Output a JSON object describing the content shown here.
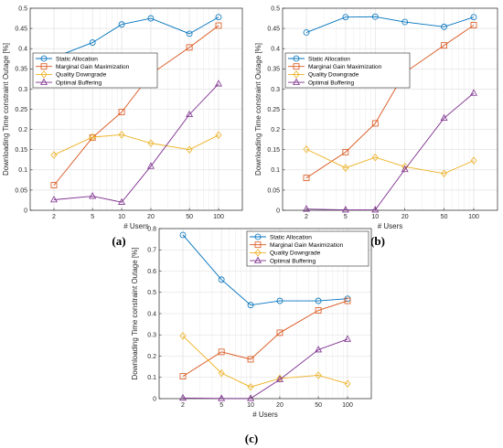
{
  "chart_data": [
    {
      "panel_label": "(a)",
      "type": "line",
      "x_categories": [
        "2",
        "5",
        "10",
        "20",
        "50",
        "100"
      ],
      "x_values": [
        2,
        5,
        10,
        20,
        50,
        100
      ],
      "xlabel": "# Users",
      "ylabel": "Downloading Time constraint Outage [%]",
      "ylim": [
        0,
        0.5
      ],
      "yticks": [
        "0",
        "0.05",
        "0.1",
        "0.15",
        "0.2",
        "0.25",
        "0.3",
        "0.35",
        "0.4",
        "0.45",
        "0.5"
      ],
      "grid": true,
      "legend_position": "top-left",
      "series": [
        {
          "name": "Static Allocation",
          "color": "#0072BD",
          "marker": "circle",
          "values": [
            0.378,
            0.415,
            0.46,
            0.475,
            0.437,
            0.478
          ]
        },
        {
          "name": "Marginal Gain Maximization",
          "color": "#D95319",
          "marker": "square",
          "values": [
            0.062,
            0.18,
            0.243,
            0.337,
            0.403,
            0.457
          ]
        },
        {
          "name": "Quality Downgrade",
          "color": "#EDB120",
          "marker": "diamond",
          "values": [
            0.137,
            0.181,
            0.187,
            0.166,
            0.15,
            0.186
          ]
        },
        {
          "name": "Optimal Buffering",
          "color": "#7E2F8E",
          "marker": "triangle",
          "values": [
            0.026,
            0.035,
            0.02,
            0.109,
            0.237,
            0.313
          ]
        }
      ]
    },
    {
      "panel_label": "(b)",
      "type": "line",
      "x_categories": [
        "2",
        "5",
        "10",
        "20",
        "50",
        "100"
      ],
      "x_values": [
        2,
        5,
        10,
        20,
        50,
        100
      ],
      "xlabel": "# Users",
      "ylabel": "Downloading Time constraint Outage [%]",
      "ylim": [
        0,
        0.5
      ],
      "yticks": [
        "0",
        "0.05",
        "0.1",
        "0.15",
        "0.2",
        "0.25",
        "0.3",
        "0.35",
        "0.4",
        "0.45",
        "0.5"
      ],
      "grid": true,
      "legend_position": "top-left",
      "series": [
        {
          "name": "Static Allocation",
          "color": "#0072BD",
          "marker": "circle",
          "values": [
            0.44,
            0.478,
            0.479,
            0.466,
            0.454,
            0.478
          ]
        },
        {
          "name": "Marginal Gain Maximization",
          "color": "#D95319",
          "marker": "square",
          "values": [
            0.08,
            0.144,
            0.215,
            0.341,
            0.408,
            0.458
          ]
        },
        {
          "name": "Quality Downgrade",
          "color": "#EDB120",
          "marker": "diamond",
          "values": [
            0.151,
            0.105,
            0.131,
            0.108,
            0.091,
            0.123
          ]
        },
        {
          "name": "Optimal Buffering",
          "color": "#7E2F8E",
          "marker": "triangle",
          "values": [
            0.003,
            0.001,
            0.001,
            0.101,
            0.228,
            0.29
          ]
        }
      ]
    },
    {
      "panel_label": "(c)",
      "type": "line",
      "x_categories": [
        "2",
        "5",
        "10",
        "20",
        "50",
        "100"
      ],
      "x_values": [
        2,
        5,
        10,
        20,
        50,
        100
      ],
      "xlabel": "# Users",
      "ylabel": "Downloading Time constraint Outage [%]",
      "ylim": [
        0,
        0.8
      ],
      "yticks": [
        "0",
        "0.1",
        "0.2",
        "0.3",
        "0.4",
        "0.5",
        "0.6",
        "0.7",
        "0.8"
      ],
      "grid": true,
      "legend_position": "top-right",
      "series": [
        {
          "name": "Static Allocation",
          "color": "#0072BD",
          "marker": "circle",
          "values": [
            0.77,
            0.56,
            0.44,
            0.46,
            0.46,
            0.47
          ]
        },
        {
          "name": "Marginal Gain Maximization",
          "color": "#D95319",
          "marker": "square",
          "values": [
            0.105,
            0.22,
            0.185,
            0.31,
            0.415,
            0.46
          ]
        },
        {
          "name": "Quality Downgrade",
          "color": "#EDB120",
          "marker": "diamond",
          "values": [
            0.295,
            0.12,
            0.055,
            0.095,
            0.11,
            0.07
          ]
        },
        {
          "name": "Optimal Buffering",
          "color": "#7E2F8E",
          "marker": "triangle",
          "values": [
            0.003,
            0.001,
            0.001,
            0.09,
            0.23,
            0.28
          ]
        }
      ]
    }
  ]
}
